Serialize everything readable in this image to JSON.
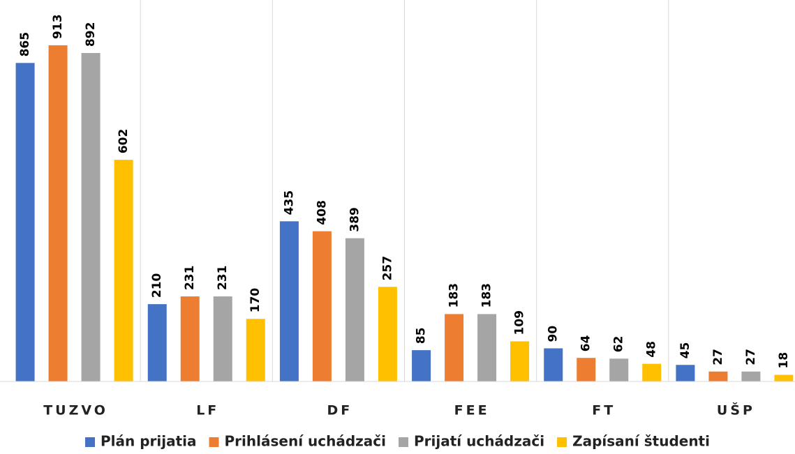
{
  "chart_data": {
    "type": "bar",
    "categories": [
      "TUZVO",
      "LF",
      "DF",
      "FEE",
      "FT",
      "UŠP"
    ],
    "series": [
      {
        "name": "Plán prijatia",
        "color": "#4472c4",
        "values": [
          865,
          210,
          435,
          85,
          90,
          45
        ]
      },
      {
        "name": "Prihlásení uchádzači",
        "color": "#ed7d31",
        "values": [
          913,
          231,
          408,
          183,
          64,
          27
        ]
      },
      {
        "name": "Prijatí uchádzači",
        "color": "#a5a5a5",
        "values": [
          892,
          231,
          389,
          183,
          62,
          27
        ]
      },
      {
        "name": "Zapísaní študenti",
        "color": "#ffc000",
        "values": [
          602,
          170,
          257,
          109,
          48,
          18
        ]
      }
    ],
    "ylim": [
      0,
      1000
    ],
    "legend": "bottom"
  }
}
